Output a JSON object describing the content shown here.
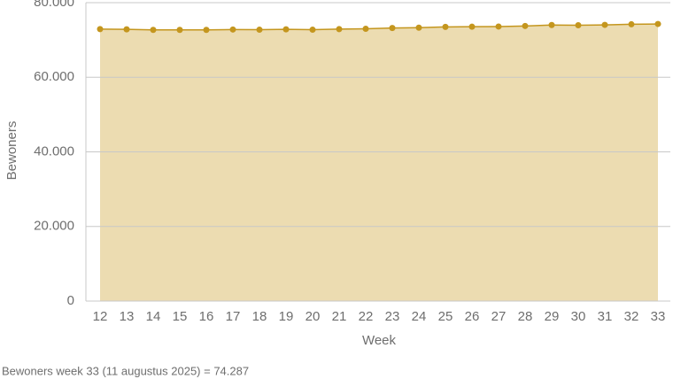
{
  "chart_data": {
    "type": "area",
    "categories": [
      "12",
      "13",
      "14",
      "15",
      "16",
      "17",
      "18",
      "19",
      "20",
      "21",
      "22",
      "23",
      "24",
      "25",
      "26",
      "27",
      "28",
      "29",
      "30",
      "31",
      "32",
      "33"
    ],
    "series": [
      {
        "name": "Bewoners",
        "color": "#c4961e",
        "fill": "#ecdcb1",
        "values": [
          72900,
          72850,
          72700,
          72700,
          72700,
          72800,
          72750,
          72850,
          72750,
          72900,
          73000,
          73200,
          73300,
          73500,
          73550,
          73600,
          73750,
          74000,
          73950,
          74050,
          74200,
          74287
        ]
      }
    ],
    "ylim": [
      0,
      80000
    ],
    "yticks": [
      0,
      {
        "value": 20000,
        "label": "20.000"
      },
      {
        "value": 40000,
        "label": "40.000"
      },
      {
        "value": 60000,
        "label": "60.000"
      },
      {
        "value": 80000,
        "label": "80.000"
      }
    ],
    "grid": true,
    "y_label": "Bewoners",
    "x_label": "Week",
    "footnote": "Bewoners week 33 (11 augustus 2025) = 74.287"
  }
}
